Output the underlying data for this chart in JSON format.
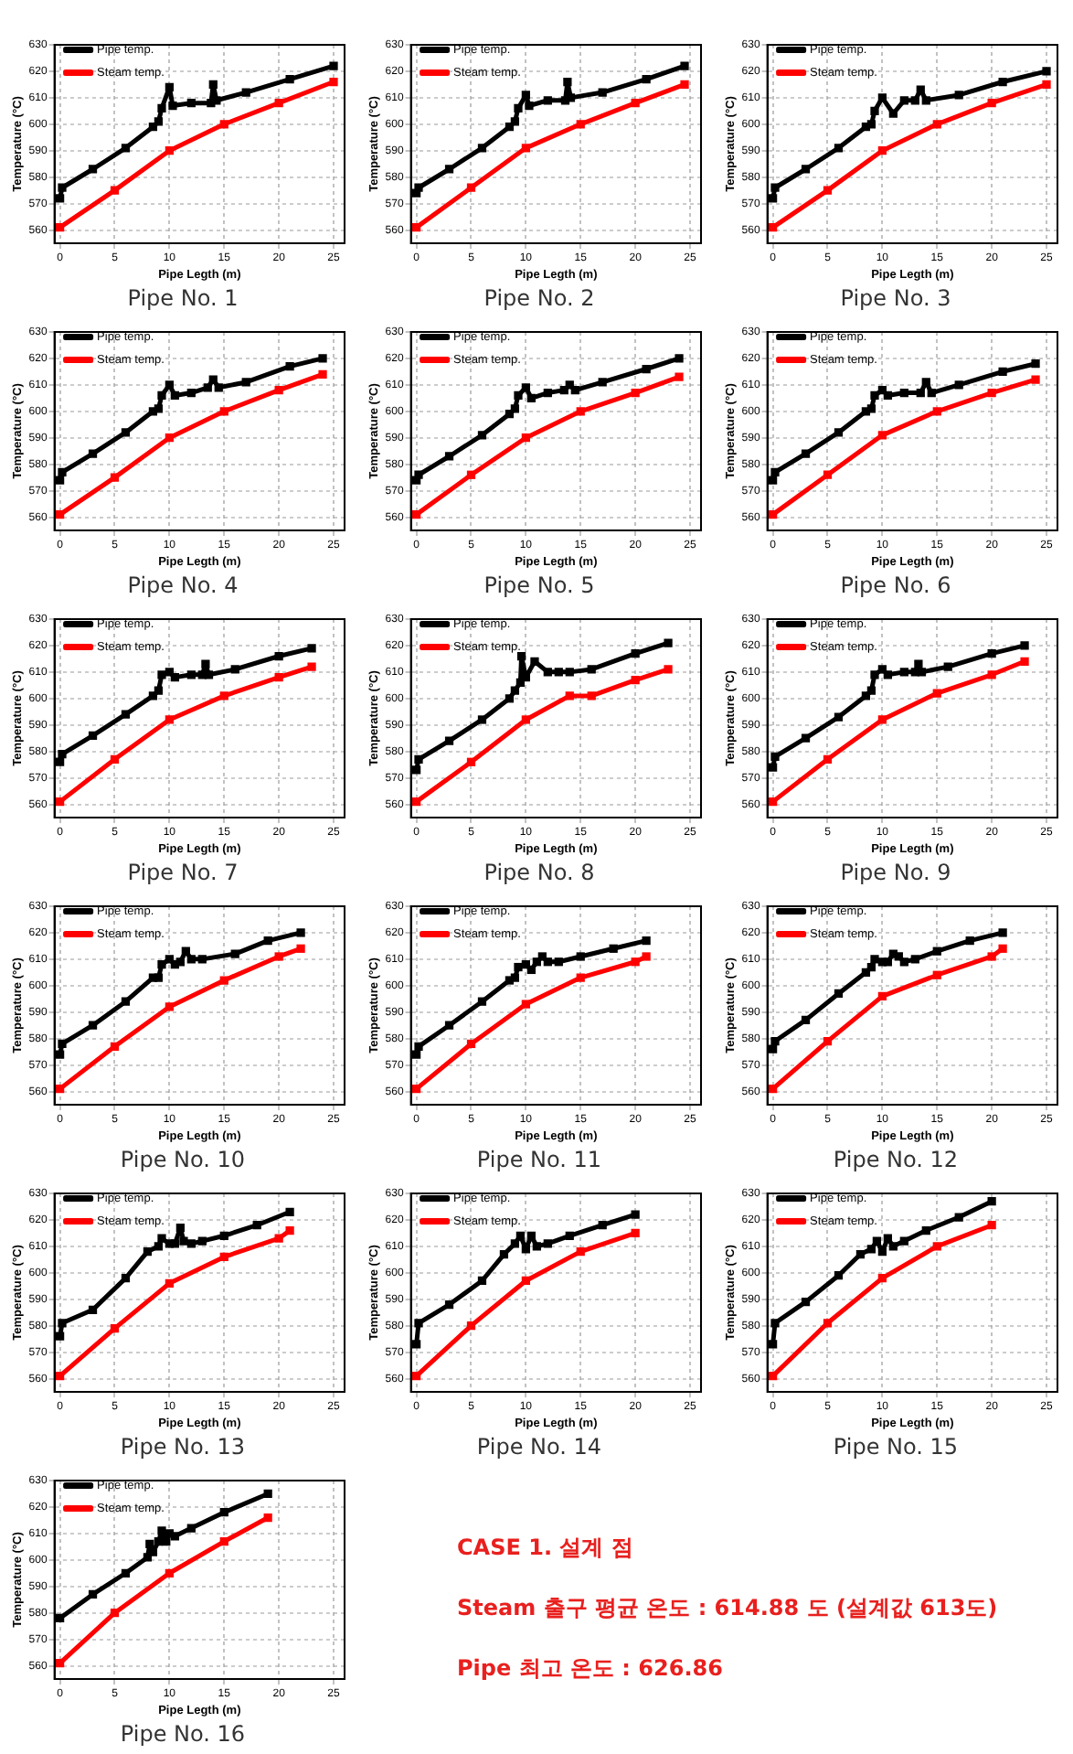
{
  "chart_data": [
    {
      "type": "line",
      "title": "Pipe No. 1",
      "xlabel": "Pipe Legth (m)",
      "ylabel": "Temperature (°C)",
      "xlim": [
        -0.5,
        26
      ],
      "xticks": [
        0,
        5,
        10,
        15,
        20,
        25
      ],
      "ylim": [
        555,
        630
      ],
      "yticks": [
        560,
        570,
        580,
        590,
        600,
        610,
        620,
        630
      ],
      "grid": true,
      "legend": "top left",
      "marker": "square",
      "series": [
        {
          "name": "Pipe temp.",
          "color": "#000000",
          "x": [
            0,
            0.2,
            3,
            6,
            8.5,
            9,
            9.3,
            10,
            10.3,
            12,
            13.8,
            14,
            14.3,
            17,
            21,
            25
          ],
          "values": [
            572,
            576,
            583,
            591,
            599,
            601,
            606,
            614,
            607,
            608,
            608,
            615,
            609,
            612,
            617,
            622
          ]
        },
        {
          "name": "Steam temp.",
          "color": "#ff0000",
          "x": [
            0,
            5,
            10,
            15,
            20,
            25
          ],
          "values": [
            561,
            575,
            590,
            600,
            608,
            616
          ]
        }
      ]
    },
    {
      "type": "line",
      "title": "Pipe No. 2",
      "xlabel": "Pipe Legth (m)",
      "ylabel": "Temperature (°C)",
      "xlim": [
        -0.5,
        26
      ],
      "xticks": [
        0,
        5,
        10,
        15,
        20,
        25
      ],
      "ylim": [
        555,
        630
      ],
      "yticks": [
        560,
        570,
        580,
        590,
        600,
        610,
        620,
        630
      ],
      "grid": true,
      "legend": "top left",
      "marker": "square",
      "series": [
        {
          "name": "Pipe temp.",
          "color": "#000000",
          "x": [
            0,
            0.2,
            3,
            6,
            8.5,
            9,
            9.3,
            10,
            10.3,
            12,
            13.6,
            13.8,
            14.1,
            17,
            21,
            24.5
          ],
          "values": [
            574,
            576,
            583,
            591,
            599,
            601,
            606,
            611,
            607,
            609,
            609,
            616,
            610,
            612,
            617,
            622
          ]
        },
        {
          "name": "Steam temp.",
          "color": "#ff0000",
          "x": [
            0,
            5,
            10,
            15,
            20,
            24.5
          ],
          "values": [
            561,
            576,
            591,
            600,
            608,
            615
          ]
        }
      ]
    },
    {
      "type": "line",
      "title": "Pipe No. 3",
      "xlabel": "Pipe Legth (m)",
      "ylabel": "Temperature (°C)",
      "xlim": [
        -0.5,
        26
      ],
      "xticks": [
        0,
        5,
        10,
        15,
        20,
        25
      ],
      "ylim": [
        555,
        630
      ],
      "yticks": [
        560,
        570,
        580,
        590,
        600,
        610,
        620,
        630
      ],
      "grid": true,
      "legend": "top left",
      "marker": "square",
      "series": [
        {
          "name": "Pipe temp.",
          "color": "#000000",
          "x": [
            0,
            0.2,
            3,
            6,
            8.5,
            9,
            9.3,
            10,
            11,
            12,
            13,
            13.5,
            14,
            17,
            21,
            25
          ],
          "values": [
            572,
            576,
            583,
            591,
            599,
            600,
            605,
            610,
            604,
            609,
            609,
            613,
            609,
            611,
            616,
            620
          ]
        },
        {
          "name": "Steam temp.",
          "color": "#ff0000",
          "x": [
            0,
            5,
            10,
            15,
            20,
            25
          ],
          "values": [
            561,
            575,
            590,
            600,
            608,
            615
          ]
        }
      ]
    },
    {
      "type": "line",
      "title": "Pipe No. 4",
      "xlabel": "Pipe Legth (m)",
      "ylabel": "Temperature (°C)",
      "xlim": [
        -0.5,
        26
      ],
      "xticks": [
        0,
        5,
        10,
        15,
        20,
        25
      ],
      "ylim": [
        555,
        630
      ],
      "yticks": [
        560,
        570,
        580,
        590,
        600,
        610,
        620,
        630
      ],
      "grid": true,
      "legend": "top left",
      "marker": "square",
      "series": [
        {
          "name": "Pipe temp.",
          "color": "#000000",
          "x": [
            0,
            0.2,
            3,
            6,
            8.5,
            9,
            9.3,
            10,
            10.5,
            12,
            13.5,
            14,
            14.5,
            17,
            21,
            24
          ],
          "values": [
            574,
            577,
            584,
            592,
            600,
            601,
            606,
            610,
            606,
            607,
            609,
            612,
            609,
            611,
            617,
            620
          ]
        },
        {
          "name": "Steam temp.",
          "color": "#ff0000",
          "x": [
            0,
            5,
            10,
            15,
            20,
            24
          ],
          "values": [
            561,
            575,
            590,
            600,
            608,
            614
          ]
        }
      ]
    },
    {
      "type": "line",
      "title": "Pipe No. 5",
      "xlabel": "Pipe Legth (m)",
      "ylabel": "Temperature (°C)",
      "xlim": [
        -0.5,
        26
      ],
      "xticks": [
        0,
        5,
        10,
        15,
        20,
        25
      ],
      "ylim": [
        555,
        630
      ],
      "yticks": [
        560,
        570,
        580,
        590,
        600,
        610,
        620,
        630
      ],
      "grid": true,
      "legend": "top left",
      "marker": "square",
      "series": [
        {
          "name": "Pipe temp.",
          "color": "#000000",
          "x": [
            0,
            0.2,
            3,
            6,
            8.5,
            9,
            9.3,
            10,
            10.5,
            12,
            13.5,
            14,
            14.5,
            17,
            21,
            24
          ],
          "values": [
            574,
            576,
            583,
            591,
            599,
            601,
            606,
            609,
            605,
            607,
            608,
            610,
            608,
            611,
            616,
            620
          ]
        },
        {
          "name": "Steam temp.",
          "color": "#ff0000",
          "x": [
            0,
            5,
            10,
            15,
            20,
            24
          ],
          "values": [
            561,
            576,
            590,
            600,
            607,
            613
          ]
        }
      ]
    },
    {
      "type": "line",
      "title": "Pipe No. 6",
      "xlabel": "Pipe Legth (m)",
      "ylabel": "Temperature (°C)",
      "xlim": [
        -0.5,
        26
      ],
      "xticks": [
        0,
        5,
        10,
        15,
        20,
        25
      ],
      "ylim": [
        555,
        630
      ],
      "yticks": [
        560,
        570,
        580,
        590,
        600,
        610,
        620,
        630
      ],
      "grid": true,
      "legend": "top left",
      "marker": "square",
      "series": [
        {
          "name": "Pipe temp.",
          "color": "#000000",
          "x": [
            0,
            0.2,
            3,
            6,
            8.5,
            9,
            9.3,
            10,
            10.5,
            12,
            13.5,
            14,
            14.5,
            17,
            21,
            24
          ],
          "values": [
            574,
            577,
            584,
            592,
            600,
            601,
            606,
            608,
            606,
            607,
            607,
            611,
            607,
            610,
            615,
            618
          ]
        },
        {
          "name": "Steam temp.",
          "color": "#ff0000",
          "x": [
            0,
            5,
            10,
            15,
            20,
            24
          ],
          "values": [
            561,
            576,
            591,
            600,
            607,
            612
          ]
        }
      ]
    },
    {
      "type": "line",
      "title": "Pipe No. 7",
      "xlabel": "Pipe Legth (m)",
      "ylabel": "Temperature (°C)",
      "xlim": [
        -0.5,
        26
      ],
      "xticks": [
        0,
        5,
        10,
        15,
        20,
        25
      ],
      "ylim": [
        555,
        630
      ],
      "yticks": [
        560,
        570,
        580,
        590,
        600,
        610,
        620,
        630
      ],
      "grid": true,
      "legend": "top left",
      "marker": "square",
      "series": [
        {
          "name": "Pipe temp.",
          "color": "#000000",
          "x": [
            0,
            0.2,
            3,
            6,
            8.5,
            9,
            9.3,
            10,
            10.5,
            12,
            13,
            13.3,
            13.6,
            16,
            20,
            23
          ],
          "values": [
            576,
            579,
            586,
            594,
            601,
            603,
            609,
            610,
            608,
            609,
            609,
            613,
            609,
            611,
            616,
            619
          ]
        },
        {
          "name": "Steam temp.",
          "color": "#ff0000",
          "x": [
            0,
            5,
            10,
            15,
            20,
            23
          ],
          "values": [
            561,
            577,
            592,
            601,
            608,
            612
          ]
        }
      ]
    },
    {
      "type": "line",
      "title": "Pipe No. 8",
      "xlabel": "Pipe Legth (m)",
      "ylabel": "Temperature (°C)",
      "xlim": [
        -0.5,
        26
      ],
      "xticks": [
        0,
        5,
        10,
        15,
        20,
        25
      ],
      "ylim": [
        555,
        630
      ],
      "yticks": [
        560,
        570,
        580,
        590,
        600,
        610,
        620,
        630
      ],
      "grid": true,
      "legend": "top left",
      "marker": "square",
      "series": [
        {
          "name": "Pipe temp.",
          "color": "#000000",
          "x": [
            0,
            0.2,
            3,
            6,
            8.5,
            9,
            9.5,
            9.6,
            10,
            10.8,
            12,
            13,
            14,
            16,
            20,
            23
          ],
          "values": [
            573,
            577,
            584,
            592,
            600,
            603,
            606,
            616,
            608,
            614,
            610,
            610,
            610,
            611,
            617,
            621
          ]
        },
        {
          "name": "Steam temp.",
          "color": "#ff0000",
          "x": [
            0,
            5,
            10,
            14,
            16,
            20,
            23
          ],
          "values": [
            561,
            576,
            592,
            601,
            601,
            607,
            611
          ]
        }
      ]
    },
    {
      "type": "line",
      "title": "Pipe No. 9",
      "xlabel": "Pipe Legth (m)",
      "ylabel": "Temperature (°C)",
      "xlim": [
        -0.5,
        26
      ],
      "xticks": [
        0,
        5,
        10,
        15,
        20,
        25
      ],
      "ylim": [
        555,
        630
      ],
      "yticks": [
        560,
        570,
        580,
        590,
        600,
        610,
        620,
        630
      ],
      "grid": true,
      "legend": "top left",
      "marker": "square",
      "series": [
        {
          "name": "Pipe temp.",
          "color": "#000000",
          "x": [
            0,
            0.2,
            3,
            6,
            8.5,
            9,
            9.3,
            10,
            10.5,
            12,
            13,
            13.3,
            13.6,
            16,
            20,
            23
          ],
          "values": [
            574,
            578,
            585,
            593,
            601,
            603,
            609,
            611,
            609,
            610,
            610,
            613,
            610,
            612,
            617,
            620
          ]
        },
        {
          "name": "Steam temp.",
          "color": "#ff0000",
          "x": [
            0,
            5,
            10,
            15,
            20,
            23
          ],
          "values": [
            561,
            577,
            592,
            602,
            609,
            614
          ]
        }
      ]
    },
    {
      "type": "line",
      "title": "Pipe No. 10",
      "xlabel": "Pipe Legth (m)",
      "ylabel": "Temperature (°C)",
      "xlim": [
        -0.5,
        26
      ],
      "xticks": [
        0,
        5,
        10,
        15,
        20,
        25
      ],
      "ylim": [
        555,
        630
      ],
      "yticks": [
        560,
        570,
        580,
        590,
        600,
        610,
        620,
        630
      ],
      "grid": true,
      "legend": "top left",
      "marker": "square",
      "series": [
        {
          "name": "Pipe temp.",
          "color": "#000000",
          "x": [
            0,
            0.2,
            3,
            6,
            8.5,
            9,
            9.3,
            10,
            10.5,
            11,
            11.5,
            12,
            13,
            16,
            19,
            22
          ],
          "values": [
            574,
            578,
            585,
            594,
            603,
            603,
            608,
            610,
            608,
            609,
            613,
            610,
            610,
            612,
            617,
            620
          ]
        },
        {
          "name": "Steam temp.",
          "color": "#ff0000",
          "x": [
            0,
            5,
            10,
            15,
            20,
            22
          ],
          "values": [
            561,
            577,
            592,
            602,
            611,
            614
          ]
        }
      ]
    },
    {
      "type": "line",
      "title": "Pipe No. 11",
      "xlabel": "Pipe Legth (m)",
      "ylabel": "Temperature (°C)",
      "xlim": [
        -0.5,
        26
      ],
      "xticks": [
        0,
        5,
        10,
        15,
        20,
        25
      ],
      "ylim": [
        555,
        630
      ],
      "yticks": [
        560,
        570,
        580,
        590,
        600,
        610,
        620,
        630
      ],
      "grid": true,
      "legend": "top left",
      "marker": "square",
      "series": [
        {
          "name": "Pipe temp.",
          "color": "#000000",
          "x": [
            0,
            0.2,
            3,
            6,
            8.5,
            9,
            9.3,
            10,
            10.5,
            11,
            11.5,
            12,
            13,
            15,
            18,
            21
          ],
          "values": [
            574,
            577,
            585,
            594,
            602,
            603,
            607,
            608,
            606,
            609,
            611,
            609,
            609,
            611,
            614,
            617
          ]
        },
        {
          "name": "Steam temp.",
          "color": "#ff0000",
          "x": [
            0,
            5,
            10,
            15,
            20,
            21
          ],
          "values": [
            561,
            578,
            593,
            603,
            609,
            611
          ]
        }
      ]
    },
    {
      "type": "line",
      "title": "Pipe No. 12",
      "xlabel": "Pipe Legth (m)",
      "ylabel": "Temperature (°C)",
      "xlim": [
        -0.5,
        26
      ],
      "xticks": [
        0,
        5,
        10,
        15,
        20,
        25
      ],
      "ylim": [
        555,
        630
      ],
      "yticks": [
        560,
        570,
        580,
        590,
        600,
        610,
        620,
        630
      ],
      "grid": true,
      "legend": "top left",
      "marker": "square",
      "series": [
        {
          "name": "Pipe temp.",
          "color": "#000000",
          "x": [
            0,
            0.2,
            3,
            6,
            8.5,
            9,
            9.3,
            10,
            10.5,
            11,
            11.5,
            12,
            13,
            15,
            18,
            21
          ],
          "values": [
            576,
            579,
            587,
            597,
            605,
            607,
            610,
            609,
            609,
            612,
            611,
            609,
            610,
            613,
            617,
            620
          ]
        },
        {
          "name": "Steam temp.",
          "color": "#ff0000",
          "x": [
            0,
            5,
            10,
            15,
            20,
            21
          ],
          "values": [
            561,
            579,
            596,
            604,
            611,
            614
          ]
        }
      ]
    },
    {
      "type": "line",
      "title": "Pipe No. 13",
      "xlabel": "Pipe Legth (m)",
      "ylabel": "Temperature (°C)",
      "xlim": [
        -0.5,
        26
      ],
      "xticks": [
        0,
        5,
        10,
        15,
        20,
        25
      ],
      "ylim": [
        555,
        630
      ],
      "yticks": [
        560,
        570,
        580,
        590,
        600,
        610,
        620,
        630
      ],
      "grid": true,
      "legend": "top left",
      "marker": "square",
      "series": [
        {
          "name": "Pipe temp.",
          "color": "#000000",
          "x": [
            0,
            0.2,
            3,
            6,
            8,
            9,
            9.3,
            10,
            10.5,
            11,
            11.3,
            12,
            13,
            15,
            18,
            21
          ],
          "values": [
            576,
            581,
            586,
            598,
            608,
            610,
            613,
            611,
            611,
            617,
            612,
            611,
            612,
            614,
            618,
            623
          ]
        },
        {
          "name": "Steam temp.",
          "color": "#ff0000",
          "x": [
            0,
            5,
            10,
            15,
            20,
            21
          ],
          "values": [
            561,
            579,
            596,
            606,
            613,
            616
          ]
        }
      ]
    },
    {
      "type": "line",
      "title": "Pipe No. 14",
      "xlabel": "Pipe Legth (m)",
      "ylabel": "Temperature (°C)",
      "xlim": [
        -0.5,
        26
      ],
      "xticks": [
        0,
        5,
        10,
        15,
        20,
        25
      ],
      "ylim": [
        555,
        630
      ],
      "yticks": [
        560,
        570,
        580,
        590,
        600,
        610,
        620,
        630
      ],
      "grid": true,
      "legend": "top left",
      "marker": "square",
      "series": [
        {
          "name": "Pipe temp.",
          "color": "#000000",
          "x": [
            0,
            0.2,
            3,
            6,
            8,
            9,
            9.5,
            10,
            10.5,
            11,
            12,
            14,
            17,
            20
          ],
          "values": [
            573,
            581,
            588,
            597,
            607,
            611,
            614,
            609,
            614,
            610,
            611,
            614,
            618,
            622
          ]
        },
        {
          "name": "Steam temp.",
          "color": "#ff0000",
          "x": [
            0,
            5,
            10,
            15,
            20
          ],
          "values": [
            561,
            580,
            597,
            608,
            615
          ]
        }
      ]
    },
    {
      "type": "line",
      "title": "Pipe No. 15",
      "xlabel": "Pipe Legth (m)",
      "ylabel": "Temperature (°C)",
      "xlim": [
        -0.5,
        26
      ],
      "xticks": [
        0,
        5,
        10,
        15,
        20,
        25
      ],
      "ylim": [
        555,
        630
      ],
      "yticks": [
        560,
        570,
        580,
        590,
        600,
        610,
        620,
        630
      ],
      "grid": true,
      "legend": "top left",
      "marker": "square",
      "series": [
        {
          "name": "Pipe temp.",
          "color": "#000000",
          "x": [
            0,
            0.2,
            3,
            6,
            8,
            9,
            9.5,
            10,
            10.5,
            11,
            12,
            14,
            17,
            20
          ],
          "values": [
            573,
            581,
            589,
            599,
            607,
            609,
            612,
            608,
            613,
            610,
            612,
            616,
            621,
            627
          ]
        },
        {
          "name": "Steam temp.",
          "color": "#ff0000",
          "x": [
            0,
            5,
            10,
            15,
            20
          ],
          "values": [
            561,
            581,
            598,
            610,
            618
          ]
        }
      ]
    },
    {
      "type": "line",
      "title": "Pipe No. 16",
      "xlabel": "Pipe Legth (m)",
      "ylabel": "Temperature (°C)",
      "xlim": [
        -0.5,
        26
      ],
      "xticks": [
        0,
        5,
        10,
        15,
        20,
        25
      ],
      "ylim": [
        555,
        630
      ],
      "yticks": [
        560,
        570,
        580,
        590,
        600,
        610,
        620,
        630
      ],
      "grid": true,
      "legend": "top left",
      "marker": "square",
      "series": [
        {
          "name": "Pipe temp.",
          "color": "#000000",
          "x": [
            0,
            3,
            6,
            8,
            8.2,
            8.5,
            9,
            9.3,
            9.7,
            10,
            10.5,
            12,
            15,
            19
          ],
          "values": [
            578,
            587,
            595,
            601,
            606,
            603,
            607,
            611,
            607,
            610,
            609,
            612,
            618,
            625
          ]
        },
        {
          "name": "Steam temp.",
          "color": "#ff0000",
          "x": [
            0,
            5,
            10,
            15,
            19
          ],
          "values": [
            561,
            580,
            595,
            607,
            616
          ]
        }
      ]
    },
    {
      "type": "other",
      "annotations": [
        "CASE 1. 설계 점",
        "Steam 출구 평균 온도 : 614.88 도 (설계값 613도)",
        "Pipe 최고 온도 : 626.86"
      ]
    }
  ]
}
